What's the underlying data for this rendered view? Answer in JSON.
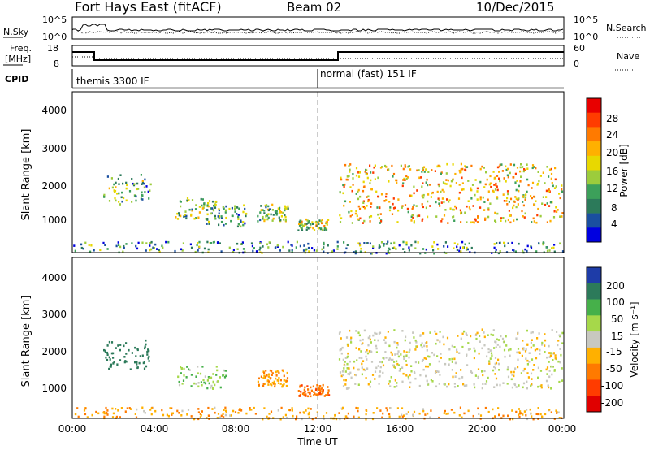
{
  "header": {
    "site": "Fort Hays East (fitACF)",
    "beam": "Beam 02",
    "date": "10/Dec/2015"
  },
  "summary_panels": {
    "nsky_label": "N.Sky",
    "nsky_ticks": [
      "10^5",
      "10^0"
    ],
    "nsearch_label": "N.Search",
    "nsearch_ticks": [
      "10^5",
      "10^0"
    ],
    "freq_label_line1": "Freq.",
    "freq_label_line2": "[MHz]",
    "freq_ticks": [
      "18",
      "8"
    ],
    "nave_label": "Nave",
    "nave_ticks": [
      "60",
      "0"
    ],
    "cpid_label": "CPID",
    "cpid_modes": [
      {
        "name": "themis 3300 IF",
        "start_hour": 0
      },
      {
        "name": "normal (fast) 151 IF",
        "start_hour": 12
      }
    ]
  },
  "axes": {
    "ylabel": "Slant Range [km]",
    "yticks": [
      "4000",
      "3000",
      "2000",
      "1000"
    ],
    "xticks": [
      "00:00",
      "04:00",
      "08:00",
      "12:00",
      "16:00",
      "20:00",
      "00:00"
    ],
    "xlabel": "Time UT"
  },
  "colorbars": {
    "power": {
      "label": "Power [dB]",
      "ticks": [
        "28",
        "24",
        "20",
        "16",
        "12",
        "8",
        "4"
      ],
      "colors": [
        "#e80000",
        "#ff3c00",
        "#ff7a00",
        "#ffb000",
        "#e8d800",
        "#9ccc3c",
        "#3ca05a",
        "#2c7a5a",
        "#1a4fa0",
        "#0000e0"
      ]
    },
    "velocity": {
      "label": "Velocity [m s⁻¹]",
      "ticks": [
        "200",
        "100",
        "50",
        "15",
        "-15",
        "-50",
        "-100",
        "-200"
      ],
      "colors": [
        "#1e3ca8",
        "#2c7a5a",
        "#46b04a",
        "#a6d84a",
        "#c8c8c0",
        "#ffb000",
        "#ff7a00",
        "#ff3c00",
        "#e00000"
      ]
    }
  },
  "chart_data": [
    {
      "type": "heatmap",
      "title": "Power",
      "xlabel": "Time UT",
      "ylabel": "Slant Range [km]",
      "xlim": [
        0,
        24
      ],
      "ylim": [
        180,
        4500
      ],
      "colorbar_label": "Power [dB]",
      "scatter_regions": [
        {
          "t0": 1.5,
          "t1": 3.8,
          "r0": 1500,
          "r1": 2300,
          "level": 12
        },
        {
          "t0": 5.0,
          "t1": 7.0,
          "r0": 1100,
          "r1": 1700,
          "level": 14
        },
        {
          "t0": 6.5,
          "t1": 8.5,
          "r0": 900,
          "r1": 1500,
          "level": 12
        },
        {
          "t0": 9.0,
          "t1": 10.5,
          "r0": 1050,
          "r1": 1500,
          "level": 13
        },
        {
          "t0": 11.0,
          "t1": 12.5,
          "r0": 800,
          "r1": 1100,
          "level": 16
        },
        {
          "t0": 13.0,
          "t1": 23.9,
          "r0": 1000,
          "r1": 2600,
          "level": 20
        },
        {
          "t0": 0.0,
          "t1": 24.0,
          "r0": 180,
          "r1": 500,
          "level": 10
        }
      ]
    },
    {
      "type": "heatmap",
      "title": "Velocity",
      "xlabel": "Time UT",
      "ylabel": "Slant Range [km]",
      "xlim": [
        0,
        24
      ],
      "ylim": [
        180,
        4500
      ],
      "colorbar_label": "Velocity [m s⁻¹]",
      "scatter_regions": [
        {
          "t0": 1.5,
          "t1": 3.8,
          "r0": 1500,
          "r1": 2300,
          "level": 150
        },
        {
          "t0": 5.0,
          "t1": 7.5,
          "r0": 1000,
          "r1": 1600,
          "level": 40
        },
        {
          "t0": 9.0,
          "t1": 10.5,
          "r0": 1050,
          "r1": 1500,
          "level": -50
        },
        {
          "t0": 11.0,
          "t1": 12.5,
          "r0": 800,
          "r1": 1100,
          "level": -80
        },
        {
          "t0": 13.0,
          "t1": 23.9,
          "r0": 1000,
          "r1": 2600,
          "level": 0
        },
        {
          "t0": 0.0,
          "t1": 24.0,
          "r0": 180,
          "r1": 500,
          "level": -40
        }
      ]
    }
  ]
}
